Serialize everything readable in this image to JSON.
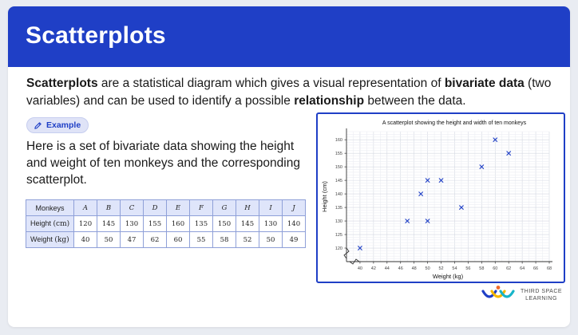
{
  "header": {
    "title": "Scatterplots"
  },
  "intro": {
    "t1_bold": "Scatterplots",
    "t2": " are a statistical diagram which gives a visual representation of ",
    "t3_bold": "bivariate data",
    "t4": " (two variables) and can be used to identify a possible ",
    "t5_bold": "relationship",
    "t6": " between the data."
  },
  "example_label": "Example",
  "body_text": "Here is a set of bivariate data showing the height and weight of ten monkeys and the corresponding scatterplot.",
  "table": {
    "corner": "Monkeys",
    "columns": [
      "A",
      "B",
      "C",
      "D",
      "E",
      "F",
      "G",
      "H",
      "I",
      "J"
    ],
    "rows": [
      {
        "label": "Height",
        "unit": "(cm)",
        "values": [
          "120",
          "145",
          "130",
          "155",
          "160",
          "135",
          "150",
          "145",
          "130",
          "140"
        ]
      },
      {
        "label": "Weight",
        "unit": "(kg)",
        "values": [
          "40",
          "50",
          "47",
          "62",
          "60",
          "55",
          "58",
          "52",
          "50",
          "49"
        ]
      }
    ]
  },
  "chart_data": {
    "type": "scatter",
    "title": "A scatterplot showing the height and width of ten monkeys",
    "xlabel": "Weight (kg)",
    "ylabel": "Height (cm)",
    "xlim": [
      38,
      68
    ],
    "ylim": [
      115,
      163
    ],
    "xticks": [
      "40",
      "42",
      "44",
      "46",
      "48",
      "50",
      "52",
      "54",
      "56",
      "58",
      "60",
      "62",
      "64",
      "66",
      "68"
    ],
    "yticks": [
      "120",
      "125",
      "130",
      "135",
      "140",
      "145",
      "150",
      "155",
      "160"
    ],
    "grid": true,
    "marker": "x",
    "marker_color": "#1f3fc6",
    "points": [
      {
        "x": 40,
        "y": 120
      },
      {
        "x": 47,
        "y": 130
      },
      {
        "x": 49,
        "y": 140
      },
      {
        "x": 50,
        "y": 145
      },
      {
        "x": 50,
        "y": 130
      },
      {
        "x": 52,
        "y": 145
      },
      {
        "x": 55,
        "y": 135
      },
      {
        "x": 58,
        "y": 150
      },
      {
        "x": 60,
        "y": 160
      },
      {
        "x": 62,
        "y": 155
      }
    ]
  },
  "logo": {
    "line1": "THIRD SPACE",
    "line2": "LEARNING"
  },
  "colors": {
    "brand": "#1f3fc6",
    "header_bg": "#1f3fc6",
    "pill_bg": "#dfe3f7",
    "table_head_bg": "#dfe5fa"
  }
}
